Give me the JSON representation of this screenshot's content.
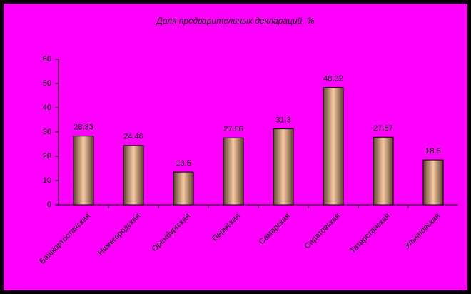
{
  "chart_data": {
    "type": "bar",
    "title": "Доля предварительных деклараций, %",
    "categories": [
      "Башкортостанская",
      "Нижегородская",
      "Оренбургская",
      "Пермская",
      "Самарская",
      "Саратовская",
      "Татарстанская",
      "Ульяновская"
    ],
    "values": [
      28.33,
      24.46,
      13.5,
      27.56,
      31.3,
      48.32,
      27.87,
      18.5
    ],
    "ylim": [
      0,
      60
    ],
    "yticks": [
      0,
      10,
      20,
      30,
      40,
      50,
      60
    ],
    "grid": false
  }
}
